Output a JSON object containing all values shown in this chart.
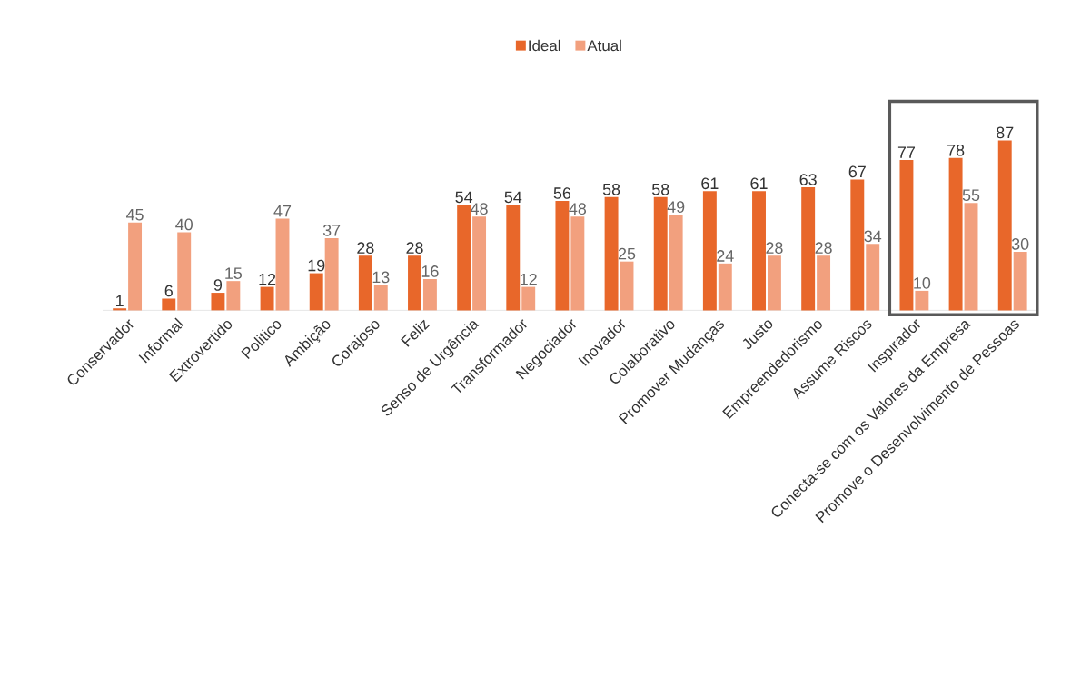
{
  "chart_data": {
    "type": "bar",
    "categories": [
      "Conservador",
      "Informal",
      "Extrovertido",
      "Politico",
      "Ambição",
      "Corajoso",
      "Feliz",
      "Senso de Urgência",
      "Transformador",
      "Negociador",
      "Inovador",
      "Colaborativo",
      "Promover Mudanças",
      "Justo",
      "Empreendedorismo",
      "Assume Riscos",
      "Inspirador",
      "Conecta-se com os Valores da Empresa",
      "Promove o Desenvolvimento de Pessoas"
    ],
    "series": [
      {
        "name": "Ideal",
        "color": "#e8672a",
        "values": [
          1,
          6,
          9,
          12,
          19,
          28,
          28,
          54,
          54,
          56,
          58,
          58,
          61,
          61,
          63,
          67,
          77,
          78,
          87
        ]
      },
      {
        "name": "Atual",
        "color": "#f2a07e",
        "values": [
          45,
          40,
          15,
          47,
          37,
          13,
          16,
          48,
          12,
          48,
          25,
          49,
          24,
          28,
          28,
          34,
          10,
          55,
          30
        ]
      }
    ],
    "data_labels": true,
    "legend": "top"
  }
}
